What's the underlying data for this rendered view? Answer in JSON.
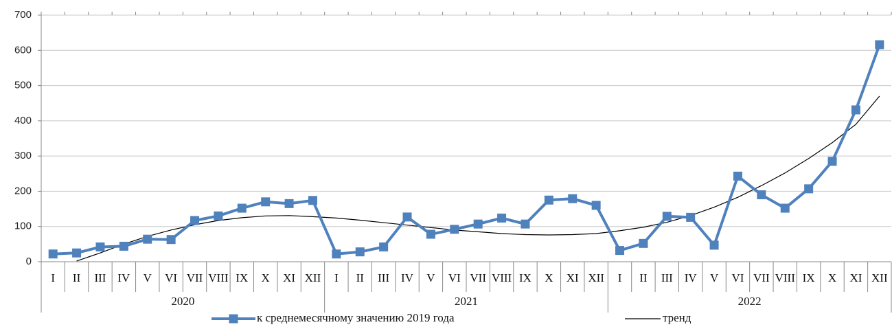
{
  "chart_data": {
    "type": "line",
    "categories": [
      "I",
      "II",
      "III",
      "IV",
      "V",
      "VI",
      "VII",
      "VIII",
      "IX",
      "X",
      "XI",
      "XII",
      "I",
      "II",
      "III",
      "IV",
      "V",
      "VI",
      "VII",
      "VIII",
      "IX",
      "X",
      "XI",
      "XII",
      "I",
      "II",
      "III",
      "IV",
      "V",
      "VI",
      "VII",
      "VIII",
      "IX",
      "X",
      "XI",
      "XII"
    ],
    "year_groups": [
      "2020",
      "2021",
      "2022"
    ],
    "series": [
      {
        "name": "к среднемесячному значению 2019 года",
        "color": "#4f81bd",
        "marker": "square",
        "values": [
          22,
          25,
          42,
          44,
          64,
          63,
          117,
          130,
          152,
          170,
          165,
          174,
          22,
          28,
          42,
          127,
          78,
          92,
          107,
          124,
          107,
          175,
          179,
          160,
          32,
          52,
          129,
          126,
          47,
          243,
          190,
          152,
          207,
          285,
          431,
          616
        ]
      },
      {
        "name": "тренд",
        "color": "#000000",
        "values": [
          null,
          2,
          25,
          50,
          72,
          90,
          105,
          117,
          125,
          130,
          131,
          128,
          124,
          118,
          111,
          104,
          97,
          90,
          85,
          80,
          77,
          76,
          77,
          80,
          88,
          98,
          112,
          131,
          155,
          183,
          216,
          252,
          293,
          338,
          390,
          470
        ]
      }
    ],
    "ylim": [
      0,
      700
    ],
    "yticks": [
      0,
      100,
      200,
      300,
      400,
      500,
      600,
      700
    ],
    "grid": true,
    "legend": "bottom"
  }
}
